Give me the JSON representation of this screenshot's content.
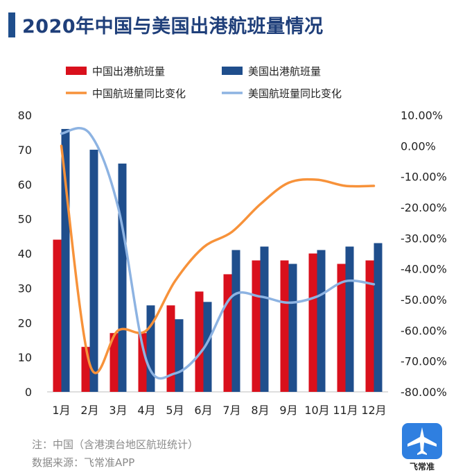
{
  "header": {
    "title": "2020年中国与美国出港航班量情况"
  },
  "footer": {
    "note": "注：中国（含港澳台地区航班统计）",
    "source": "数据来源：飞常准APP",
    "logo_text": "飞常准"
  },
  "colors": {
    "china_bar": "#d9101c",
    "us_bar": "#1f4e8c",
    "china_line": "#f7923a",
    "us_line": "#8db3e2"
  },
  "chart_data": {
    "type": "bar",
    "categories": [
      "1月",
      "2月",
      "3月",
      "4月",
      "5月",
      "6月",
      "7月",
      "8月",
      "9月",
      "10月",
      "11月",
      "12月"
    ],
    "series": [
      {
        "name": "中国出港航班量",
        "kind": "bar",
        "axis": "left",
        "color": "#d9101c",
        "values": [
          44,
          13,
          17,
          17,
          25,
          29,
          34,
          38,
          38,
          40,
          37,
          38
        ]
      },
      {
        "name": "美国出港航班量",
        "kind": "bar",
        "axis": "left",
        "color": "#1f4e8c",
        "values": [
          76,
          70,
          66,
          25,
          21,
          26,
          41,
          42,
          37,
          41,
          42,
          43
        ]
      },
      {
        "name": "中国航班量同比变化",
        "kind": "line",
        "axis": "right",
        "color": "#f7923a",
        "values": [
          0.0,
          -71.0,
          -60.0,
          -60.0,
          -44.0,
          -33.0,
          -28.0,
          -19.0,
          -12.0,
          -11.0,
          -13.0,
          -13.0
        ]
      },
      {
        "name": "美国航班量同比变化",
        "kind": "line",
        "axis": "right",
        "color": "#8db3e2",
        "values": [
          4.0,
          4.0,
          -20.0,
          -70.0,
          -74.0,
          -66.0,
          -49.0,
          -49.0,
          -51.0,
          -49.0,
          -44.0,
          -45.0
        ]
      }
    ],
    "y_left": {
      "min": 0,
      "max": 80,
      "ticks": [
        "0",
        "10",
        "20",
        "30",
        "40",
        "50",
        "60",
        "70",
        "80"
      ]
    },
    "y_right": {
      "min": -80,
      "max": 10,
      "ticks": [
        "-80.00%",
        "-70.00%",
        "-60.00%",
        "-50.00%",
        "-40.00%",
        "-30.00%",
        "-20.00%",
        "-10.00%",
        "0.00%",
        "10.00%"
      ]
    },
    "legend": "top",
    "grid": false
  }
}
